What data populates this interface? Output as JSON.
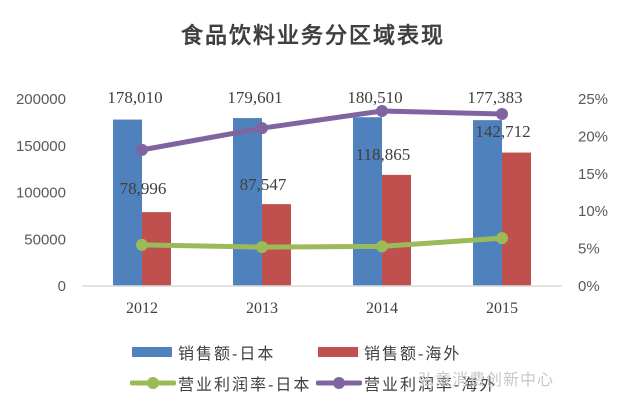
{
  "title": "食品饮料业务分区域表现",
  "watermark": "弘章消费创新中心",
  "chart_data": {
    "type": "bar",
    "title": "食品饮料业务分区域表现",
    "categories": [
      "2012",
      "2013",
      "2014",
      "2015"
    ],
    "series": [
      {
        "name": "销售额-日本",
        "type": "bar",
        "axis": "left",
        "color": "#4f81bd",
        "values": [
          178010,
          179601,
          180510,
          177383
        ],
        "labels": [
          "178,010",
          "179,601",
          "180,510",
          "177,383"
        ]
      },
      {
        "name": "销售额-海外",
        "type": "bar",
        "axis": "left",
        "color": "#c0504d",
        "values": [
          78996,
          87547,
          118865,
          142712
        ],
        "labels": [
          "78,996",
          "87,547",
          "118,865",
          "142,712"
        ]
      },
      {
        "name": "营业利润率-日本",
        "type": "line",
        "axis": "right",
        "color": "#9bbb59",
        "values": [
          5.5,
          5.2,
          5.3,
          6.4
        ]
      },
      {
        "name": "营业利润率-海外",
        "type": "line",
        "axis": "right",
        "color": "#8064a2",
        "values": [
          18.2,
          21.1,
          23.4,
          23.0
        ]
      }
    ],
    "y_left": {
      "ticks": [
        "0",
        "50000",
        "100000",
        "150000",
        "200000"
      ],
      "ylim": [
        0,
        200000
      ]
    },
    "y_right": {
      "ticks": [
        "0%",
        "5%",
        "10%",
        "15%",
        "20%",
        "25%"
      ],
      "ylim": [
        0,
        25
      ]
    },
    "xlabel": "",
    "ylabel": "",
    "grid": false,
    "legend_position": "bottom"
  },
  "legend": [
    {
      "label": "销售额-日本",
      "color": "#4f81bd",
      "kind": "bar"
    },
    {
      "label": "销售额-海外",
      "color": "#c0504d",
      "kind": "bar"
    },
    {
      "label": "营业利润率-日本",
      "color": "#9bbb59",
      "kind": "line"
    },
    {
      "label": "营业利润率-海外",
      "color": "#8064a2",
      "kind": "line"
    }
  ]
}
